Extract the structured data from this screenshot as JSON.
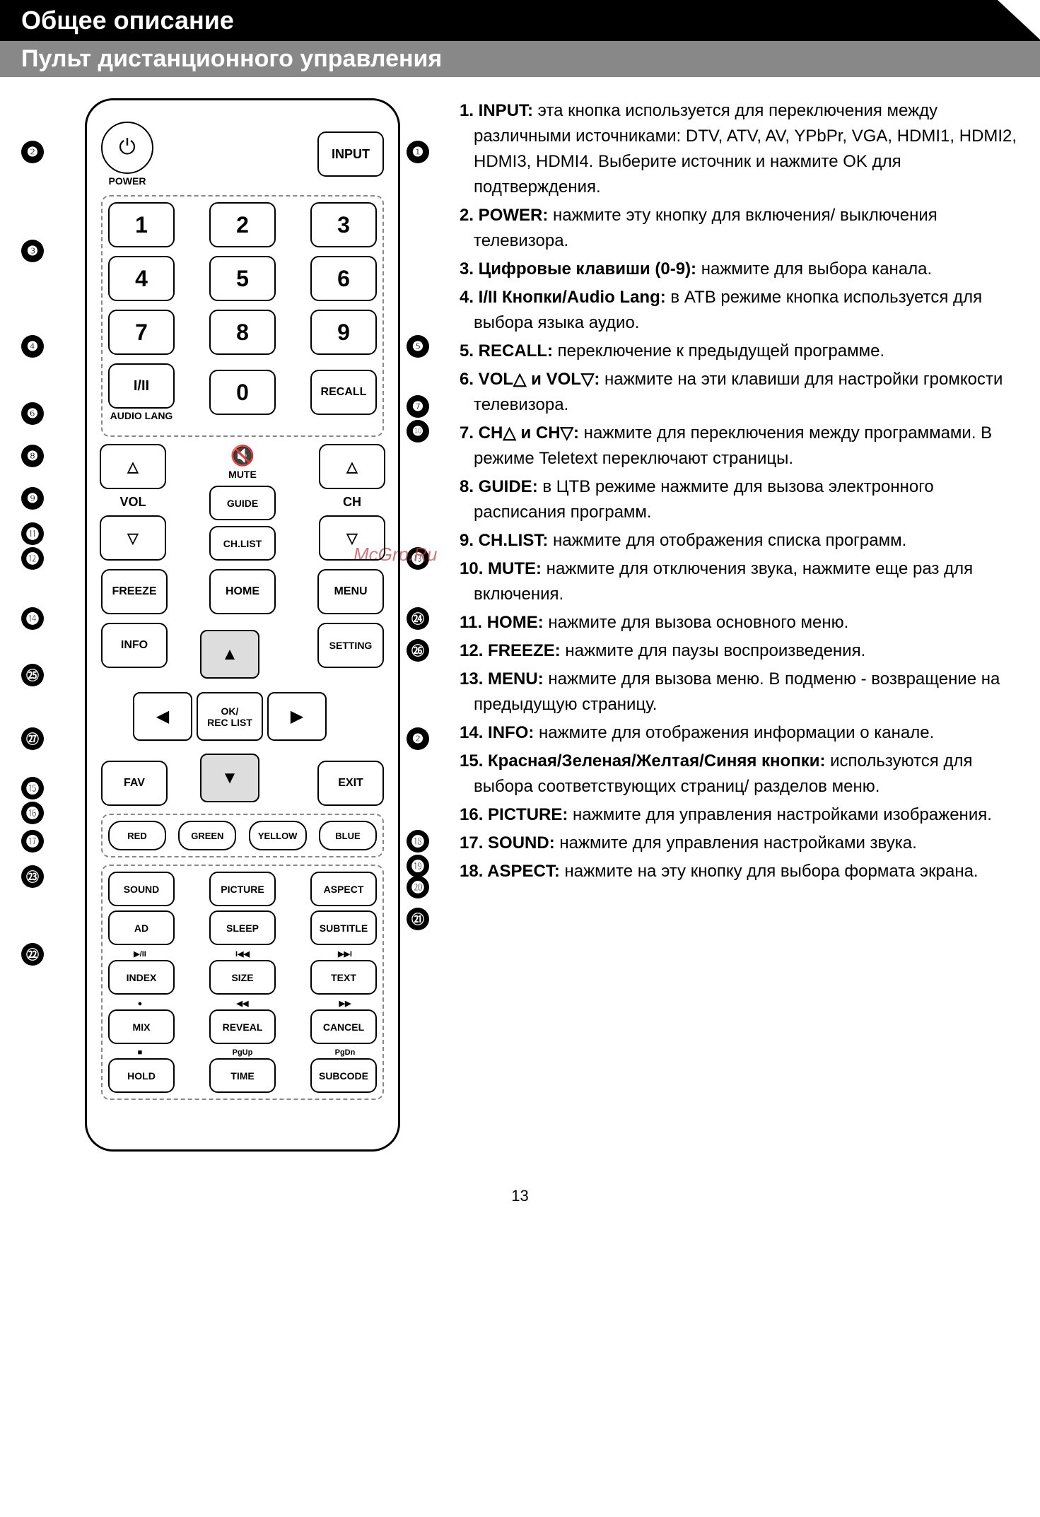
{
  "title_main": "Общее описание",
  "title_sub": "Пульт дистанционного управления",
  "page_number": "13",
  "watermark": "McGrp.Ru",
  "remote": {
    "power_label": "POWER",
    "input": "INPUT",
    "nums": [
      "1",
      "2",
      "3",
      "4",
      "5",
      "6",
      "7",
      "8",
      "9",
      "0"
    ],
    "i_ii": "I/II",
    "audio_lang": "AUDIO LANG",
    "recall": "RECALL",
    "vol": "VOL",
    "ch": "CH",
    "mute": "MUTE",
    "guide": "GUIDE",
    "chlist": "CH.LIST",
    "freeze": "FREEZE",
    "home": "HOME",
    "menu": "MENU",
    "info": "INFO",
    "setting": "SETTING",
    "ok": "OK/\nREC LIST",
    "fav": "FAV",
    "exit": "EXIT",
    "red": "RED",
    "green": "GREEN",
    "yellow": "YELLOW",
    "blue": "BLUE",
    "sound": "SOUND",
    "picture": "PICTURE",
    "aspect": "ASPECT",
    "ad": "AD",
    "sleep": "SLEEP",
    "subtitle": "SUBTITLE",
    "index": "INDEX",
    "size": "SIZE",
    "text": "TEXT",
    "mix": "MIX",
    "reveal": "REVEAL",
    "cancel": "CANCEL",
    "hold": "HOLD",
    "time": "TIME",
    "subcode": "SUBCODE",
    "pgup": "PgUp",
    "pgdn": "PgDn"
  },
  "callouts_left": [
    "❷",
    "❸",
    "❹",
    "❻",
    "❽",
    "❾",
    "⓫",
    "⓬",
    "⓮",
    "㉕",
    "㉗",
    "⓯",
    "⓰",
    "⓱",
    "㉓",
    "㉒"
  ],
  "callouts_right": [
    "❶",
    "❺",
    "❼",
    "❿",
    "⓭",
    "㉔",
    "㉖",
    "❷",
    "⓲",
    "⓳",
    "⓴",
    "㉑"
  ],
  "descriptions": [
    {
      "n": "1.",
      "t": "INPUT:",
      "d": " эта кнопка используется для переключения между различными источниками: DTV, ATV, AV, YPbPr, VGA, HDMI1, HDMI2, HDMI3, HDMI4. Выберите источник и нажмите OK для подтверждения."
    },
    {
      "n": "2.",
      "t": "POWER:",
      "d": " нажмите эту кнопку для включения/ выключения телевизора."
    },
    {
      "n": "3.",
      "t": "Цифровые клавиши (0-9):",
      "d": " нажмите для выбора канала."
    },
    {
      "n": "4.",
      "t": "I/II Кнопки/Audio Lang:",
      "d": " в ATB режиме кнопка используется для выбора языка аудио."
    },
    {
      "n": "5.",
      "t": "RECALL:",
      "d": " переключение к предыдущей программе."
    },
    {
      "n": "6.",
      "t": "VOL△ и VOL▽:",
      "d": " нажмите на эти клавиши для настройки громкости телевизора."
    },
    {
      "n": "7.",
      "t": "CH△ и CH▽:",
      "d": " нажмите для переключения между программами. В режиме Teletext переключают страницы."
    },
    {
      "n": "8.",
      "t": "GUIDE:",
      "d": " в ЦТВ режиме нажмите для вызова электронного расписания программ."
    },
    {
      "n": "9.",
      "t": "CH.LIST:",
      "d": " нажмите для отображения списка программ."
    },
    {
      "n": "10.",
      "t": "MUTE:",
      "d": " нажмите для отключения звука, нажмите еще раз для включения."
    },
    {
      "n": "11.",
      "t": "HOME:",
      "d": " нажмите для вызова основного меню."
    },
    {
      "n": "12.",
      "t": "FREEZE:",
      "d": " нажмите для паузы воспроизведения."
    },
    {
      "n": "13.",
      "t": "MENU:",
      "d": " нажмите для вызова меню. В подменю - возвращение на предыдущую страницу."
    },
    {
      "n": "14.",
      "t": "INFO:",
      "d": " нажмите для отображения информации о канале."
    },
    {
      "n": "15.",
      "t": "Красная/Зеленая/Желтая/Синяя кнопки:",
      "d": " используются для выбора соответствующих страниц/ разделов меню."
    },
    {
      "n": "16.",
      "t": "PICTURE:",
      "d": " нажмите для управления настройками изображения."
    },
    {
      "n": "17.",
      "t": "SOUND:",
      "d": " нажмите для управления настройками звука."
    },
    {
      "n": "18.",
      "t": "ASPECT:",
      "d": " нажмите на эту кнопку для выбора формата экрана."
    }
  ]
}
